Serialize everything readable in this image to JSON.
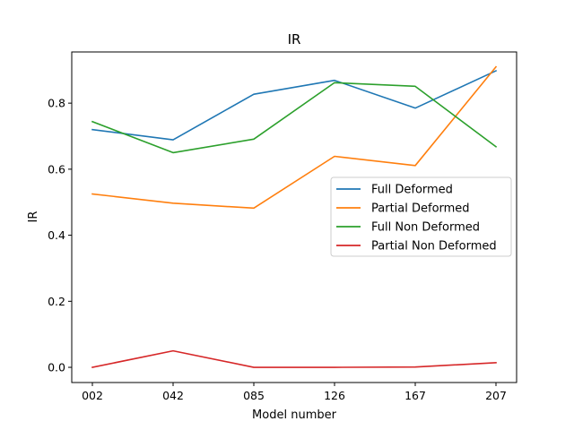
{
  "chart_data": {
    "type": "line",
    "title": "IR",
    "xlabel": "Model number",
    "ylabel": "IR",
    "categories": [
      "002",
      "042",
      "085",
      "126",
      "167",
      "207"
    ],
    "ylim": [
      -0.046,
      0.955
    ],
    "yticks": [
      0.0,
      0.2,
      0.4,
      0.6,
      0.8
    ],
    "ytick_labels": [
      "0.0",
      "0.2",
      "0.4",
      "0.6",
      "0.8"
    ],
    "grid": false,
    "legend_position": "center-right",
    "series": [
      {
        "name": "Full Deformed",
        "color": "#1f77b4",
        "values": [
          0.72,
          0.689,
          0.827,
          0.869,
          0.785,
          0.898
        ]
      },
      {
        "name": "Partial Deformed",
        "color": "#ff7f0e",
        "values": [
          0.525,
          0.497,
          0.482,
          0.639,
          0.611,
          0.91
        ]
      },
      {
        "name": "Full Non Deformed",
        "color": "#2ca02c",
        "values": [
          0.744,
          0.65,
          0.691,
          0.862,
          0.851,
          0.668
        ]
      },
      {
        "name": "Partial Non Deformed",
        "color": "#d62728",
        "values": [
          0.0,
          0.05,
          0.0,
          0.0,
          0.001,
          0.014
        ]
      }
    ]
  }
}
